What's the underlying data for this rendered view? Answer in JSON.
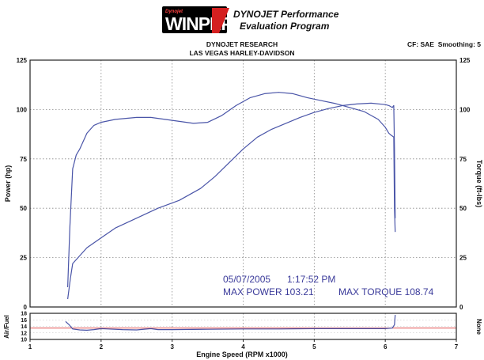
{
  "header": {
    "logo_text": "WINPEP7",
    "logo_small_text": "Dynojet",
    "title_line1": "DYNOJET Performance",
    "title_line2": "Evaluation Program",
    "shop_name": "DYNOJET RESEARCH",
    "dealer_name": "LAS VEGAS HARLEY-DAVIDSON",
    "correction": "CF: SAE  Smoothing: 5"
  },
  "colors": {
    "curve": "#4a55a8",
    "af_target": "#e05050",
    "af_band": "#e07070",
    "grid": "#888888",
    "frame": "#222222",
    "annotation": "#3a3a9a",
    "logo_red": "#d42020"
  },
  "annotation": {
    "date": "05/07/2005",
    "time": "1:17:52 PM",
    "max_power_label": "MAX POWER 103.21",
    "max_torque_label": "MAX TORQUE 108.74"
  },
  "chart_data": {
    "type": "line",
    "xlabel": "Engine Speed (RPM x1000)",
    "ylabel_left": "Power (hp)",
    "ylabel_right": "Torque (ft-lbs)",
    "xlim": [
      1,
      7
    ],
    "ylim": [
      0,
      125
    ],
    "x_ticks": [
      "1",
      "2",
      "3",
      "4",
      "5",
      "6",
      "7"
    ],
    "y_ticks": [
      "0",
      "25",
      "50",
      "75",
      "100",
      "125"
    ],
    "grid": true,
    "series": [
      {
        "points": [
          [
            1.53,
            10
          ],
          [
            1.56,
            40
          ],
          [
            1.6,
            70
          ],
          [
            1.65,
            77
          ],
          [
            1.7,
            80
          ],
          [
            1.8,
            88
          ],
          [
            1.9,
            92
          ],
          [
            2.0,
            93.5
          ],
          [
            2.2,
            95
          ],
          [
            2.5,
            96
          ],
          [
            2.7,
            96
          ],
          [
            2.9,
            95
          ],
          [
            3.1,
            94
          ],
          [
            3.3,
            93
          ],
          [
            3.5,
            93.5
          ],
          [
            3.7,
            97
          ],
          [
            3.9,
            102
          ],
          [
            4.1,
            106
          ],
          [
            4.3,
            108
          ],
          [
            4.5,
            108.7
          ],
          [
            4.7,
            108
          ],
          [
            4.9,
            106
          ],
          [
            5.1,
            104.5
          ],
          [
            5.3,
            103
          ],
          [
            5.5,
            101
          ],
          [
            5.7,
            99
          ],
          [
            5.9,
            95
          ],
          [
            6.0,
            91
          ],
          [
            6.05,
            88
          ],
          [
            6.08,
            87
          ],
          [
            6.12,
            86
          ],
          [
            6.13,
            50
          ],
          [
            6.14,
            38
          ]
        ]
      },
      {
        "points": [
          [
            1.53,
            4
          ],
          [
            1.57,
            15
          ],
          [
            1.6,
            22
          ],
          [
            1.65,
            24
          ],
          [
            1.7,
            26
          ],
          [
            1.8,
            30
          ],
          [
            2.0,
            35
          ],
          [
            2.2,
            40
          ],
          [
            2.5,
            45
          ],
          [
            2.8,
            50
          ],
          [
            3.1,
            54
          ],
          [
            3.4,
            60
          ],
          [
            3.6,
            66
          ],
          [
            3.8,
            73
          ],
          [
            4.0,
            80
          ],
          [
            4.2,
            86
          ],
          [
            4.4,
            90
          ],
          [
            4.6,
            93
          ],
          [
            4.8,
            96
          ],
          [
            5.0,
            98.5
          ],
          [
            5.2,
            100.5
          ],
          [
            5.4,
            102
          ],
          [
            5.6,
            102.8
          ],
          [
            5.8,
            103.2
          ],
          [
            6.0,
            102.5
          ],
          [
            6.05,
            102
          ],
          [
            6.1,
            101
          ],
          [
            6.12,
            102
          ],
          [
            6.13,
            80
          ],
          [
            6.14,
            45
          ]
        ]
      }
    ],
    "af_chart": {
      "ylabel": "Air/Fuel",
      "ylabel_right": "None",
      "ylim": [
        10,
        18
      ],
      "y_ticks": [
        "10",
        "12",
        "14",
        "16",
        "18"
      ],
      "target_line": 13.5,
      "points": [
        [
          1.5,
          15.5
        ],
        [
          1.55,
          14.5
        ],
        [
          1.6,
          13.2
        ],
        [
          1.7,
          12.9
        ],
        [
          1.8,
          12.8
        ],
        [
          1.9,
          13.0
        ],
        [
          2.0,
          13.3
        ],
        [
          2.1,
          13.2
        ],
        [
          2.3,
          13.0
        ],
        [
          2.5,
          12.9
        ],
        [
          2.7,
          13.3
        ],
        [
          2.8,
          13.0
        ],
        [
          3.0,
          13.0
        ],
        [
          3.5,
          13.1
        ],
        [
          4.0,
          13.2
        ],
        [
          4.5,
          13.2
        ],
        [
          5.0,
          13.3
        ],
        [
          5.5,
          13.3
        ],
        [
          6.0,
          13.3
        ],
        [
          6.1,
          13.5
        ],
        [
          6.13,
          14.5
        ],
        [
          6.14,
          17.5
        ]
      ]
    }
  }
}
